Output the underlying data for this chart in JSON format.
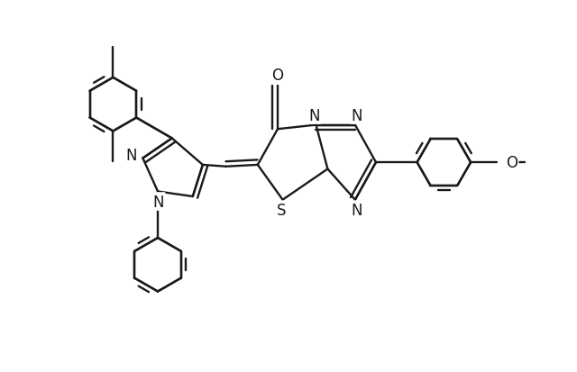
{
  "background_color": "#ffffff",
  "line_color": "#1a1a1a",
  "line_width": 1.7,
  "dbo": 0.06,
  "figsize": [
    6.4,
    4.14
  ],
  "dpi": 100,
  "xlim": [
    0.3,
    7.2
  ],
  "ylim": [
    0.5,
    4.2
  ]
}
